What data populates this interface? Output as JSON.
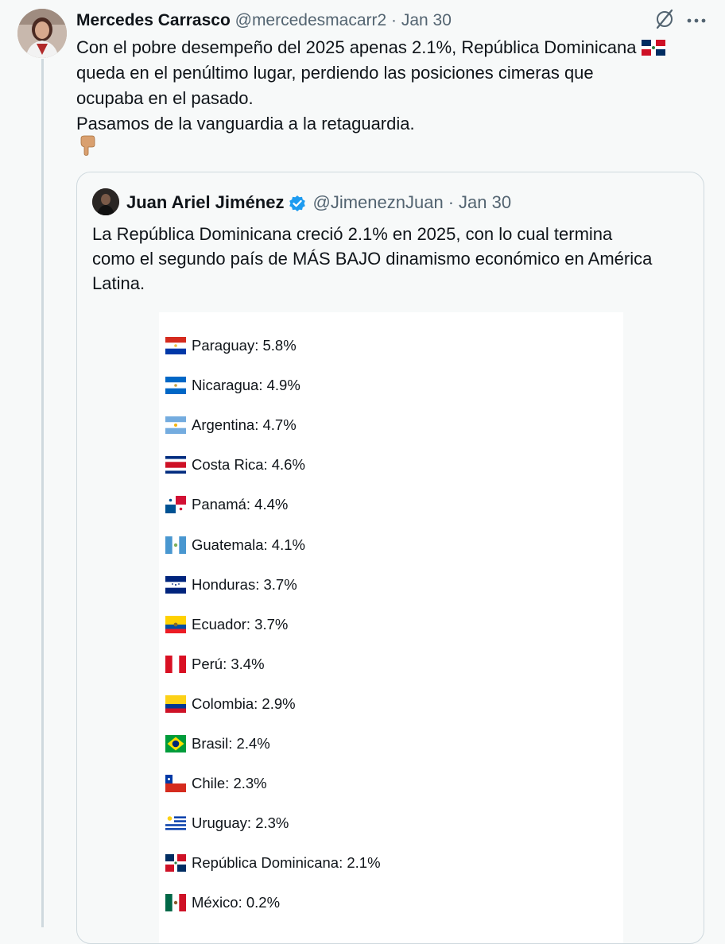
{
  "tweet": {
    "author_name": "Mercedes Carrasco",
    "handle": "@mercedesmacarr2",
    "separator": "·",
    "date": "Jan 30",
    "lines": [
      "Con el pobre desempeño del 2025 apenas 2.1%, República Dominicana",
      "queda en el penúltimo lugar, perdiendo las posiciones cimeras que",
      "ocupaba en el pasado.",
      "Pasamos de la vanguardia a la retaguardia."
    ],
    "icons": [
      "grok-slash-icon",
      "more-icon"
    ]
  },
  "quote": {
    "author_name": "Juan Ariel Jiménez",
    "handle": "@JimeneznJuan",
    "separator": "·",
    "date": "Jan 30",
    "lines": [
      "La República Dominicana creció 2.1% en 2025, con lo cual termina",
      "como el segundo país de MÁS BAJO dinamismo económico en América",
      "Latina."
    ]
  },
  "ranking": [
    {
      "country": "Paraguay",
      "label": "Paraguay: 5.8%",
      "value": 5.8,
      "flag": "py"
    },
    {
      "country": "Nicaragua",
      "label": "Nicaragua: 4.9%",
      "value": 4.9,
      "flag": "ni"
    },
    {
      "country": "Argentina",
      "label": "Argentina: 4.7%",
      "value": 4.7,
      "flag": "ar"
    },
    {
      "country": "Costa Rica",
      "label": "Costa Rica: 4.6%",
      "value": 4.6,
      "flag": "cr"
    },
    {
      "country": "Panamá",
      "label": "Panamá: 4.4%",
      "value": 4.4,
      "flag": "pa"
    },
    {
      "country": "Guatemala",
      "label": "Guatemala: 4.1%",
      "value": 4.1,
      "flag": "gt"
    },
    {
      "country": "Honduras",
      "label": "Honduras: 3.7%",
      "value": 3.7,
      "flag": "hn"
    },
    {
      "country": "Ecuador",
      "label": "Ecuador: 3.7%",
      "value": 3.7,
      "flag": "ec"
    },
    {
      "country": "Perú",
      "label": "Perú: 3.4%",
      "value": 3.4,
      "flag": "pe"
    },
    {
      "country": "Colombia",
      "label": "Colombia: 2.9%",
      "value": 2.9,
      "flag": "co"
    },
    {
      "country": "Brasil",
      "label": "Brasil: 2.4%",
      "value": 2.4,
      "flag": "br"
    },
    {
      "country": "Chile",
      "label": "Chile: 2.3%",
      "value": 2.3,
      "flag": "cl"
    },
    {
      "country": "Uruguay",
      "label": "Uruguay: 2.3%",
      "value": 2.3,
      "flag": "uy"
    },
    {
      "country": "República Dominicana",
      "label": "República Dominicana: 2.1%",
      "value": 2.1,
      "flag": "do"
    },
    {
      "country": "México",
      "label": "México: 0.2%",
      "value": 0.2,
      "flag": "mx"
    }
  ],
  "colors": {
    "text": "#0f1419",
    "muted": "#536471",
    "border": "#cfd9de",
    "verified": "#1d9bf0",
    "background": "#f7f9f9"
  }
}
